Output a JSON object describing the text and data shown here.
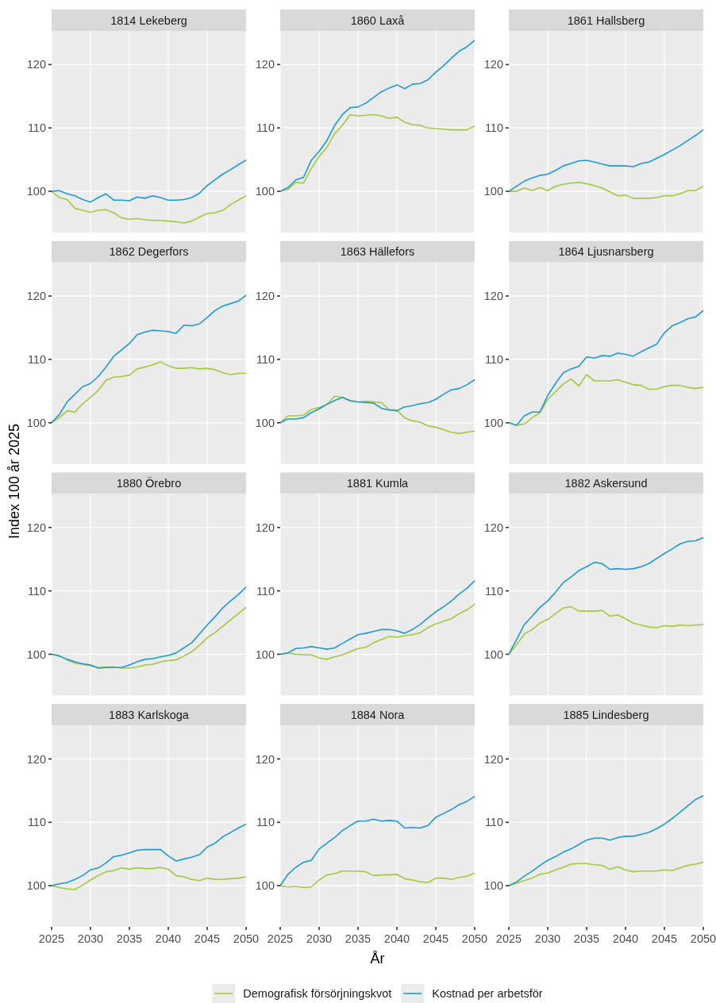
{
  "chart_data": [
    {
      "type": "line",
      "title": "1814 Lekeberg",
      "x": [
        2025,
        2026,
        2027,
        2028,
        2029,
        2030,
        2031,
        2032,
        2033,
        2034,
        2035,
        2036,
        2037,
        2038,
        2039,
        2040,
        2041,
        2042,
        2043,
        2044,
        2045,
        2046,
        2047,
        2048,
        2049,
        2050
      ],
      "series": [
        {
          "color": "#a3c93a",
          "values": [
            100,
            99.0,
            98.7,
            97.3,
            97.0,
            96.7,
            97.0,
            97.1,
            96.6,
            95.8,
            95.6,
            95.7,
            95.5,
            95.4,
            95.4,
            95.3,
            95.2,
            95.0,
            95.3,
            95.9,
            96.5,
            96.6,
            97.0,
            97.9,
            98.6,
            99.3
          ]
        },
        {
          "color": "#1b9ad6",
          "values": [
            100,
            100.1,
            99.6,
            99.3,
            98.7,
            98.3,
            99.0,
            99.6,
            98.6,
            98.6,
            98.5,
            99.1,
            98.9,
            99.3,
            99.0,
            98.6,
            98.6,
            98.7,
            99.0,
            99.7,
            100.9,
            101.8,
            102.7,
            103.4,
            104.2,
            104.9
          ]
        }
      ],
      "xlim": [
        2025,
        2050
      ],
      "xticks": [
        2025,
        2030,
        2035,
        2040,
        2045,
        2050
      ],
      "ylim": [
        93.5,
        125.3
      ],
      "yticks": [
        100,
        110,
        120
      ],
      "grid": true,
      "tick_labels": "y"
    },
    {
      "type": "line",
      "title": "1860 Laxå",
      "x": [
        2025,
        2026,
        2027,
        2028,
        2029,
        2030,
        2031,
        2032,
        2033,
        2034,
        2035,
        2036,
        2037,
        2038,
        2039,
        2040,
        2041,
        2042,
        2043,
        2044,
        2045,
        2046,
        2047,
        2048,
        2049,
        2050
      ],
      "series": [
        {
          "color": "#a3c93a",
          "values": [
            100,
            100.3,
            101.4,
            101.3,
            103.6,
            105.5,
            106.9,
            109.1,
            110.4,
            112.1,
            111.9,
            112.0,
            112.1,
            111.9,
            111.5,
            111.7,
            110.9,
            110.5,
            110.4,
            110.0,
            109.9,
            109.8,
            109.7,
            109.7,
            109.7,
            110.3
          ]
        },
        {
          "color": "#1b9ad6",
          "values": [
            100,
            100.6,
            101.8,
            102.2,
            104.9,
            106.3,
            108.0,
            110.4,
            112.1,
            113.2,
            113.3,
            113.9,
            114.8,
            115.7,
            116.3,
            116.8,
            116.2,
            116.9,
            117.0,
            117.6,
            118.8,
            119.8,
            121.0,
            122.1,
            122.8,
            123.8
          ]
        }
      ],
      "xlim": [
        2025,
        2050
      ],
      "xticks": [
        2025,
        2030,
        2035,
        2040,
        2045,
        2050
      ],
      "ylim": [
        93.5,
        125.3
      ],
      "yticks": [
        100,
        110,
        120
      ],
      "grid": true,
      "tick_labels": "y"
    },
    {
      "type": "line",
      "title": "1861 Hallsberg",
      "x": [
        2025,
        2026,
        2027,
        2028,
        2029,
        2030,
        2031,
        2032,
        2033,
        2034,
        2035,
        2036,
        2037,
        2038,
        2039,
        2040,
        2041,
        2042,
        2043,
        2044,
        2045,
        2046,
        2047,
        2048,
        2049,
        2050
      ],
      "series": [
        {
          "color": "#a3c93a",
          "values": [
            100,
            100.0,
            100.5,
            100.1,
            100.6,
            100.1,
            100.8,
            101.1,
            101.3,
            101.4,
            101.2,
            100.9,
            100.5,
            99.9,
            99.3,
            99.4,
            98.9,
            98.9,
            98.9,
            99.0,
            99.3,
            99.3,
            99.6,
            100.1,
            100.1,
            100.8
          ]
        },
        {
          "color": "#1b9ad6",
          "values": [
            100,
            100.8,
            101.6,
            102.1,
            102.5,
            102.7,
            103.3,
            104.0,
            104.4,
            104.8,
            104.9,
            104.6,
            104.3,
            104.0,
            104.0,
            104.0,
            103.9,
            104.4,
            104.6,
            105.2,
            105.8,
            106.5,
            107.2,
            108.0,
            108.8,
            109.7
          ]
        }
      ],
      "xlim": [
        2025,
        2050
      ],
      "xticks": [
        2025,
        2030,
        2035,
        2040,
        2045,
        2050
      ],
      "ylim": [
        93.5,
        125.3
      ],
      "yticks": [
        100,
        110,
        120
      ],
      "grid": true,
      "tick_labels": "y"
    },
    {
      "type": "line",
      "title": "1862 Degerfors",
      "ylabel": "Index 100 år 2025",
      "x": [
        2025,
        2026,
        2027,
        2028,
        2029,
        2030,
        2031,
        2032,
        2033,
        2034,
        2035,
        2036,
        2037,
        2038,
        2039,
        2040,
        2041,
        2042,
        2043,
        2044,
        2045,
        2046,
        2047,
        2048,
        2049,
        2050
      ],
      "series": [
        {
          "color": "#a3c93a",
          "values": [
            100,
            100.8,
            101.9,
            101.7,
            103.0,
            104.0,
            105.1,
            106.7,
            107.2,
            107.3,
            107.5,
            108.5,
            108.8,
            109.1,
            109.6,
            109.0,
            108.6,
            108.6,
            108.7,
            108.5,
            108.6,
            108.4,
            107.9,
            107.6,
            107.8,
            107.8
          ]
        },
        {
          "color": "#1b9ad6",
          "values": [
            100,
            101.3,
            103.3,
            104.5,
            105.7,
            106.2,
            107.3,
            108.8,
            110.5,
            111.5,
            112.5,
            113.9,
            114.3,
            114.6,
            114.5,
            114.4,
            114.1,
            115.4,
            115.3,
            115.6,
            116.6,
            117.7,
            118.4,
            118.8,
            119.2,
            120.1
          ]
        }
      ],
      "xlim": [
        2025,
        2050
      ],
      "xticks": [
        2025,
        2030,
        2035,
        2040,
        2045,
        2050
      ],
      "ylim": [
        93.5,
        125.3
      ],
      "yticks": [
        100,
        110,
        120
      ],
      "grid": true,
      "tick_labels": "y"
    },
    {
      "type": "line",
      "title": "1863 Hällefors",
      "x": [
        2025,
        2026,
        2027,
        2028,
        2029,
        2030,
        2031,
        2032,
        2033,
        2034,
        2035,
        2036,
        2037,
        2038,
        2039,
        2040,
        2041,
        2042,
        2043,
        2044,
        2045,
        2046,
        2047,
        2048,
        2049,
        2050
      ],
      "series": [
        {
          "color": "#a3c93a",
          "values": [
            100,
            101.1,
            101.1,
            101.2,
            102.1,
            102.4,
            102.9,
            104.2,
            104.0,
            103.4,
            103.3,
            103.4,
            103.3,
            103.2,
            102.1,
            102.0,
            100.8,
            100.3,
            100.1,
            99.5,
            99.3,
            98.9,
            98.5,
            98.3,
            98.5,
            98.7
          ]
        },
        {
          "color": "#1b9ad6",
          "values": [
            100,
            100.6,
            100.6,
            100.8,
            101.6,
            102.2,
            102.9,
            103.5,
            104.0,
            103.5,
            103.3,
            103.2,
            103.1,
            102.3,
            102.0,
            101.9,
            102.5,
            102.7,
            103.0,
            103.2,
            103.7,
            104.5,
            105.2,
            105.4,
            106.0,
            106.8
          ]
        }
      ],
      "xlim": [
        2025,
        2050
      ],
      "xticks": [
        2025,
        2030,
        2035,
        2040,
        2045,
        2050
      ],
      "ylim": [
        93.5,
        125.3
      ],
      "yticks": [
        100,
        110,
        120
      ],
      "grid": true,
      "tick_labels": "y"
    },
    {
      "type": "line",
      "title": "1864 Ljusnarsberg",
      "x": [
        2025,
        2026,
        2027,
        2028,
        2029,
        2030,
        2031,
        2032,
        2033,
        2034,
        2035,
        2036,
        2037,
        2038,
        2039,
        2040,
        2041,
        2042,
        2043,
        2044,
        2045,
        2046,
        2047,
        2048,
        2049,
        2050
      ],
      "series": [
        {
          "color": "#a3c93a",
          "values": [
            100,
            99.6,
            99.8,
            100.8,
            101.6,
            103.7,
            104.9,
            106.1,
            106.9,
            105.8,
            107.6,
            106.6,
            106.6,
            106.6,
            106.8,
            106.4,
            106.0,
            105.9,
            105.3,
            105.3,
            105.7,
            105.9,
            105.9,
            105.6,
            105.4,
            105.6
          ]
        },
        {
          "color": "#1b9ad6",
          "values": [
            100,
            99.6,
            101.1,
            101.7,
            101.7,
            104.3,
            106.2,
            107.9,
            108.5,
            108.9,
            110.4,
            110.2,
            110.6,
            110.5,
            111.0,
            110.8,
            110.5,
            111.2,
            111.8,
            112.4,
            114.2,
            115.3,
            115.8,
            116.4,
            116.7,
            117.7
          ]
        }
      ],
      "xlim": [
        2025,
        2050
      ],
      "xticks": [
        2025,
        2030,
        2035,
        2040,
        2045,
        2050
      ],
      "ylim": [
        93.5,
        125.3
      ],
      "yticks": [
        100,
        110,
        120
      ],
      "grid": true,
      "tick_labels": "y"
    },
    {
      "type": "line",
      "title": "1880 Örebro",
      "x": [
        2025,
        2026,
        2027,
        2028,
        2029,
        2030,
        2031,
        2032,
        2033,
        2034,
        2035,
        2036,
        2037,
        2038,
        2039,
        2040,
        2041,
        2042,
        2043,
        2044,
        2045,
        2046,
        2047,
        2048,
        2049,
        2050
      ],
      "series": [
        {
          "color": "#a3c93a",
          "values": [
            100,
            99.8,
            99.1,
            98.6,
            98.4,
            98.2,
            97.9,
            98.0,
            98.0,
            97.8,
            97.8,
            98.0,
            98.3,
            98.4,
            98.8,
            99.0,
            99.1,
            99.7,
            100.4,
            101.4,
            102.6,
            103.4,
            104.4,
            105.4,
            106.4,
            107.4
          ]
        },
        {
          "color": "#1b9ad6",
          "values": [
            100,
            99.7,
            99.2,
            98.8,
            98.5,
            98.3,
            97.8,
            97.9,
            97.9,
            97.9,
            98.3,
            98.8,
            99.2,
            99.3,
            99.6,
            99.8,
            100.2,
            101.0,
            101.8,
            103.2,
            104.6,
            105.9,
            107.3,
            108.4,
            109.4,
            110.6
          ]
        }
      ],
      "xlim": [
        2025,
        2050
      ],
      "xticks": [
        2025,
        2030,
        2035,
        2040,
        2045,
        2050
      ],
      "ylim": [
        93.5,
        125.3
      ],
      "yticks": [
        100,
        110,
        120
      ],
      "grid": true,
      "tick_labels": "y"
    },
    {
      "type": "line",
      "title": "1881 Kumla",
      "x": [
        2025,
        2026,
        2027,
        2028,
        2029,
        2030,
        2031,
        2032,
        2033,
        2034,
        2035,
        2036,
        2037,
        2038,
        2039,
        2040,
        2041,
        2042,
        2043,
        2044,
        2045,
        2046,
        2047,
        2048,
        2049,
        2050
      ],
      "series": [
        {
          "color": "#a3c93a",
          "values": [
            100,
            100.2,
            100.0,
            99.9,
            99.9,
            99.4,
            99.2,
            99.6,
            99.9,
            100.4,
            100.9,
            101.1,
            101.8,
            102.3,
            102.8,
            102.7,
            102.9,
            103.1,
            103.4,
            104.2,
            104.8,
            105.2,
            105.6,
            106.4,
            107.0,
            107.9
          ]
        },
        {
          "color": "#1b9ad6",
          "values": [
            100,
            100.2,
            100.9,
            101.0,
            101.2,
            101.0,
            100.8,
            101.0,
            101.7,
            102.4,
            103.1,
            103.3,
            103.6,
            103.9,
            103.9,
            103.7,
            103.3,
            103.9,
            104.7,
            105.7,
            106.7,
            107.5,
            108.4,
            109.5,
            110.4,
            111.6
          ]
        }
      ],
      "xlim": [
        2025,
        2050
      ],
      "xticks": [
        2025,
        2030,
        2035,
        2040,
        2045,
        2050
      ],
      "ylim": [
        93.5,
        125.3
      ],
      "yticks": [
        100,
        110,
        120
      ],
      "grid": true,
      "tick_labels": "y"
    },
    {
      "type": "line",
      "title": "1882 Askersund",
      "x": [
        2025,
        2026,
        2027,
        2028,
        2029,
        2030,
        2031,
        2032,
        2033,
        2034,
        2035,
        2036,
        2037,
        2038,
        2039,
        2040,
        2041,
        2042,
        2043,
        2044,
        2045,
        2046,
        2047,
        2048,
        2049,
        2050
      ],
      "series": [
        {
          "color": "#a3c93a",
          "values": [
            100,
            101.5,
            103.2,
            103.9,
            104.9,
            105.5,
            106.4,
            107.3,
            107.5,
            106.8,
            106.8,
            106.8,
            106.9,
            106.0,
            106.2,
            105.6,
            104.9,
            104.6,
            104.3,
            104.2,
            104.5,
            104.4,
            104.6,
            104.5,
            104.6,
            104.7
          ]
        },
        {
          "color": "#1b9ad6",
          "values": [
            100,
            102.3,
            104.7,
            106.0,
            107.4,
            108.4,
            109.8,
            111.3,
            112.2,
            113.2,
            113.8,
            114.5,
            114.3,
            113.4,
            113.5,
            113.4,
            113.5,
            113.8,
            114.3,
            115.1,
            115.9,
            116.6,
            117.4,
            117.8,
            117.9,
            118.4
          ]
        }
      ],
      "xlim": [
        2025,
        2050
      ],
      "xticks": [
        2025,
        2030,
        2035,
        2040,
        2045,
        2050
      ],
      "ylim": [
        93.5,
        125.3
      ],
      "yticks": [
        100,
        110,
        120
      ],
      "grid": true,
      "tick_labels": "y"
    },
    {
      "type": "line",
      "title": "1883 Karlskoga",
      "x": [
        2025,
        2026,
        2027,
        2028,
        2029,
        2030,
        2031,
        2032,
        2033,
        2034,
        2035,
        2036,
        2037,
        2038,
        2039,
        2040,
        2041,
        2042,
        2043,
        2044,
        2045,
        2046,
        2047,
        2048,
        2049,
        2050
      ],
      "series": [
        {
          "color": "#a3c93a",
          "values": [
            100,
            99.7,
            99.5,
            99.4,
            100.1,
            100.9,
            101.6,
            102.2,
            102.4,
            102.8,
            102.6,
            102.8,
            102.7,
            102.7,
            102.9,
            102.6,
            101.6,
            101.4,
            101.0,
            100.8,
            101.2,
            101.0,
            101.0,
            101.1,
            101.2,
            101.4
          ]
        },
        {
          "color": "#1b9ad6",
          "values": [
            100,
            100.3,
            100.5,
            101.0,
            101.6,
            102.5,
            102.8,
            103.6,
            104.6,
            104.8,
            105.2,
            105.6,
            105.7,
            105.7,
            105.7,
            104.7,
            103.9,
            104.2,
            104.5,
            104.9,
            106.1,
            106.7,
            107.7,
            108.4,
            109.1,
            109.7
          ]
        }
      ],
      "xlim": [
        2025,
        2050
      ],
      "xticks": [
        2025,
        2030,
        2035,
        2040,
        2045,
        2050
      ],
      "ylim": [
        93.5,
        125.3
      ],
      "yticks": [
        100,
        110,
        120
      ],
      "grid": true
    },
    {
      "type": "line",
      "title": "1884 Nora",
      "xlabel": "År",
      "legend": "bottom",
      "x": [
        2025,
        2026,
        2027,
        2028,
        2029,
        2030,
        2031,
        2032,
        2033,
        2034,
        2035,
        2036,
        2037,
        2038,
        2039,
        2040,
        2041,
        2042,
        2043,
        2044,
        2045,
        2046,
        2047,
        2048,
        2049,
        2050
      ],
      "series": [
        {
          "name": "Demografisk försörjningskvot",
          "color": "#a3c93a",
          "values": [
            100,
            99.8,
            99.9,
            99.7,
            99.8,
            100.9,
            101.7,
            101.9,
            102.3,
            102.3,
            102.3,
            102.2,
            101.6,
            101.7,
            101.7,
            101.8,
            101.1,
            100.9,
            100.6,
            100.5,
            101.2,
            101.2,
            101.0,
            101.3,
            101.5,
            102.0
          ]
        },
        {
          "name": "Kostnad per arbetsför",
          "color": "#1b9ad6",
          "values": [
            100,
            101.8,
            102.9,
            103.7,
            104.0,
            105.8,
            106.7,
            107.6,
            108.7,
            109.5,
            110.2,
            110.2,
            110.5,
            110.2,
            110.3,
            110.2,
            109.1,
            109.2,
            109.1,
            109.5,
            110.8,
            111.4,
            112.0,
            112.8,
            113.3,
            114.1
          ]
        }
      ],
      "xlim": [
        2025,
        2050
      ],
      "xticks": [
        2025,
        2030,
        2035,
        2040,
        2045,
        2050
      ],
      "ylim": [
        93.5,
        125.3
      ],
      "yticks": [
        100,
        110,
        120
      ],
      "grid": true
    },
    {
      "type": "line",
      "title": "1885 Lindesberg",
      "x": [
        2025,
        2026,
        2027,
        2028,
        2029,
        2030,
        2031,
        2032,
        2033,
        2034,
        2035,
        2036,
        2037,
        2038,
        2039,
        2040,
        2041,
        2042,
        2043,
        2044,
        2045,
        2046,
        2047,
        2048,
        2049,
        2050
      ],
      "series": [
        {
          "color": "#a3c93a",
          "values": [
            100,
            100.4,
            100.8,
            101.2,
            101.8,
            102.0,
            102.5,
            102.9,
            103.4,
            103.5,
            103.5,
            103.3,
            103.2,
            102.6,
            103.0,
            102.5,
            102.2,
            102.3,
            102.3,
            102.3,
            102.5,
            102.4,
            102.8,
            103.2,
            103.4,
            103.7
          ]
        },
        {
          "color": "#1b9ad6",
          "values": [
            100,
            100.6,
            101.5,
            102.3,
            103.2,
            104.0,
            104.6,
            105.3,
            105.8,
            106.5,
            107.2,
            107.5,
            107.5,
            107.2,
            107.6,
            107.8,
            107.8,
            108.1,
            108.4,
            109.0,
            109.7,
            110.6,
            111.6,
            112.6,
            113.6,
            114.2
          ]
        }
      ],
      "xlim": [
        2025,
        2050
      ],
      "xticks": [
        2025,
        2030,
        2035,
        2040,
        2045,
        2050
      ],
      "ylim": [
        93.5,
        125.3
      ],
      "yticks": [
        100,
        110,
        120
      ],
      "grid": true
    }
  ]
}
